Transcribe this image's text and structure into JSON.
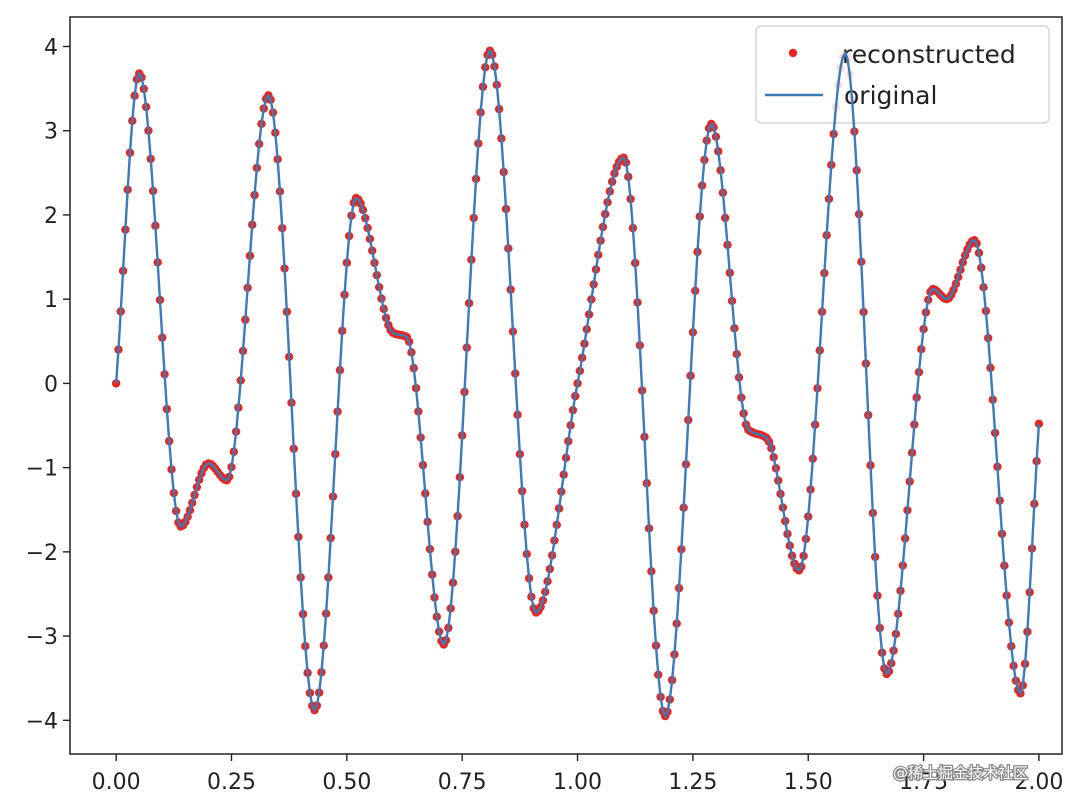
{
  "chart_data": {
    "type": "line",
    "title": "",
    "xlabel": "",
    "ylabel": "",
    "xlim": [
      -0.1,
      2.05
    ],
    "ylim": [
      -4.4,
      4.35
    ],
    "xticks": [
      0.0,
      0.25,
      0.5,
      0.75,
      1.0,
      1.25,
      1.5,
      1.75,
      2.0
    ],
    "xtick_labels": [
      "0.00",
      "0.25",
      "0.50",
      "0.75",
      "1.00",
      "1.25",
      "1.50",
      "1.75",
      "2.00"
    ],
    "yticks": [
      4,
      3,
      2,
      1,
      0,
      -1,
      -2,
      -3,
      -4
    ],
    "ytick_labels": [
      "4",
      "3",
      "2",
      "1",
      "0",
      "−1",
      "−2",
      "−3",
      "−4"
    ],
    "grid": false,
    "legend_position": "top-right",
    "series": [
      {
        "name": "reconstructed",
        "style": "markers",
        "color": "#e8251f",
        "x_start": 0.0,
        "x_end": 2.0,
        "x_step": 0.005
      },
      {
        "name": "original",
        "style": "line",
        "color": "#3a7bb8",
        "x_start": 0.0,
        "x_end": 2.0,
        "x_step": 0.005
      }
    ],
    "key_points": {
      "x": [
        0.0,
        0.05,
        0.14,
        0.2,
        0.24,
        0.33,
        0.43,
        0.52,
        0.6,
        0.63,
        0.71,
        0.81,
        0.91,
        1.0,
        1.1,
        1.19,
        1.29,
        1.37,
        1.41,
        1.48,
        1.58,
        1.67,
        1.77,
        1.8,
        1.86,
        1.96,
        2.0
      ],
      "y": [
        0.0,
        3.68,
        -1.7,
        -0.95,
        -1.15,
        3.42,
        -3.88,
        2.2,
        0.6,
        0.55,
        -3.1,
        3.95,
        -2.72,
        0.0,
        2.68,
        -3.95,
        3.08,
        -0.55,
        -0.65,
        -2.22,
        3.92,
        -3.45,
        1.12,
        1.0,
        1.7,
        -3.68,
        -0.48
      ]
    }
  },
  "watermark": "@稀土掘金技术社区"
}
